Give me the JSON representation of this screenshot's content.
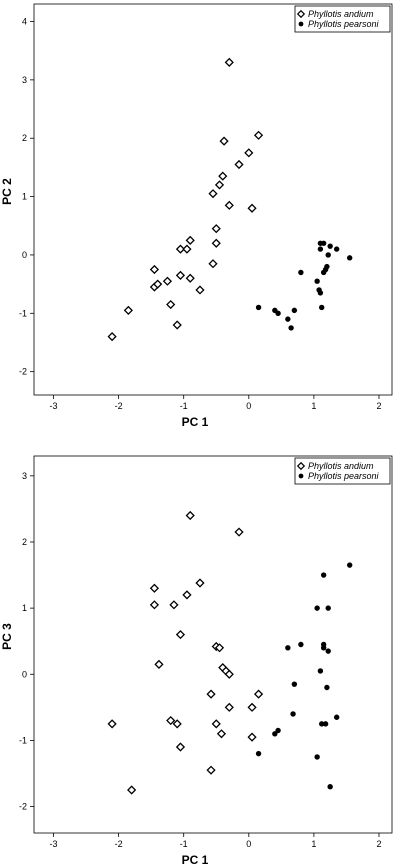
{
  "chart_data": [
    {
      "type": "scatter",
      "xlabel": "PC 1",
      "ylabel": "PC 2",
      "xlim": [
        -3.3,
        2.2
      ],
      "ylim": [
        -2.4,
        4.3
      ],
      "xticks": [
        "-3",
        "-2",
        "-1",
        "0",
        "1",
        "2"
      ],
      "yticks": [
        "-2",
        "-1",
        "0",
        "1",
        "2",
        "3",
        "4"
      ],
      "legend_position": "top-right",
      "series": [
        {
          "name": "Phyllotis andium",
          "marker": "open-diamond",
          "points": [
            [
              -2.1,
              -1.4
            ],
            [
              -1.85,
              -0.95
            ],
            [
              -1.45,
              -0.25
            ],
            [
              -1.45,
              -0.55
            ],
            [
              -1.4,
              -0.5
            ],
            [
              -1.25,
              -0.45
            ],
            [
              -1.2,
              -0.85
            ],
            [
              -1.1,
              -1.2
            ],
            [
              -1.05,
              -0.35
            ],
            [
              -1.05,
              0.1
            ],
            [
              -0.95,
              0.1
            ],
            [
              -0.9,
              0.25
            ],
            [
              -0.9,
              -0.4
            ],
            [
              -0.75,
              -0.6
            ],
            [
              -0.55,
              -0.15
            ],
            [
              -0.55,
              1.05
            ],
            [
              -0.5,
              0.2
            ],
            [
              -0.5,
              0.45
            ],
            [
              -0.45,
              1.2
            ],
            [
              -0.4,
              1.35
            ],
            [
              -0.38,
              1.95
            ],
            [
              -0.3,
              0.85
            ],
            [
              -0.3,
              3.3
            ],
            [
              -0.15,
              1.55
            ],
            [
              0.0,
              1.75
            ],
            [
              0.05,
              0.8
            ],
            [
              0.15,
              2.05
            ]
          ]
        },
        {
          "name": "Phyllotis pearsoni",
          "marker": "filled-circle",
          "points": [
            [
              0.15,
              -0.9
            ],
            [
              0.4,
              -0.95
            ],
            [
              0.45,
              -1.0
            ],
            [
              0.6,
              -1.1
            ],
            [
              0.65,
              -1.25
            ],
            [
              0.7,
              -0.95
            ],
            [
              0.8,
              -0.3
            ],
            [
              1.05,
              -0.45
            ],
            [
              1.08,
              -0.6
            ],
            [
              1.1,
              -0.65
            ],
            [
              1.1,
              0.1
            ],
            [
              1.1,
              0.2
            ],
            [
              1.12,
              -0.9
            ],
            [
              1.15,
              0.2
            ],
            [
              1.15,
              -0.3
            ],
            [
              1.18,
              -0.25
            ],
            [
              1.2,
              -0.2
            ],
            [
              1.22,
              0.0
            ],
            [
              1.25,
              0.15
            ],
            [
              1.35,
              0.1
            ],
            [
              1.55,
              -0.05
            ]
          ]
        }
      ]
    },
    {
      "type": "scatter",
      "xlabel": "PC 1",
      "ylabel": "PC 3",
      "xlim": [
        -3.3,
        2.2
      ],
      "ylim": [
        -2.4,
        3.3
      ],
      "xticks": [
        "-3",
        "-2",
        "-1",
        "0",
        "1",
        "2"
      ],
      "yticks": [
        "-2",
        "-1",
        "0",
        "1",
        "2",
        "3"
      ],
      "legend_position": "top-right",
      "series": [
        {
          "name": "Phyllotis andium",
          "marker": "open-diamond",
          "points": [
            [
              -2.1,
              -0.75
            ],
            [
              -1.8,
              -1.75
            ],
            [
              -1.45,
              1.3
            ],
            [
              -1.45,
              1.05
            ],
            [
              -1.38,
              0.15
            ],
            [
              -1.2,
              -0.7
            ],
            [
              -1.15,
              1.05
            ],
            [
              -1.1,
              -0.75
            ],
            [
              -1.05,
              -1.1
            ],
            [
              -1.05,
              0.6
            ],
            [
              -0.95,
              1.2
            ],
            [
              -0.9,
              2.4
            ],
            [
              -0.75,
              1.38
            ],
            [
              -0.58,
              -1.45
            ],
            [
              -0.58,
              -0.3
            ],
            [
              -0.5,
              -0.75
            ],
            [
              -0.5,
              0.42
            ],
            [
              -0.45,
              0.4
            ],
            [
              -0.42,
              -0.9
            ],
            [
              -0.4,
              0.1
            ],
            [
              -0.35,
              0.05
            ],
            [
              -0.3,
              0.0
            ],
            [
              -0.3,
              -0.5
            ],
            [
              -0.15,
              2.15
            ],
            [
              0.05,
              -0.95
            ],
            [
              0.05,
              -0.5
            ],
            [
              0.15,
              -0.3
            ]
          ]
        },
        {
          "name": "Phyllotis pearsoni",
          "marker": "filled-circle",
          "points": [
            [
              0.15,
              -1.2
            ],
            [
              0.4,
              -0.9
            ],
            [
              0.45,
              -0.85
            ],
            [
              0.6,
              0.4
            ],
            [
              0.68,
              -0.6
            ],
            [
              0.7,
              -0.15
            ],
            [
              0.8,
              0.45
            ],
            [
              1.05,
              -1.25
            ],
            [
              1.05,
              1.0
            ],
            [
              1.1,
              0.05
            ],
            [
              1.12,
              -0.75
            ],
            [
              1.15,
              0.4
            ],
            [
              1.15,
              0.45
            ],
            [
              1.15,
              1.5
            ],
            [
              1.18,
              -0.75
            ],
            [
              1.2,
              -0.2
            ],
            [
              1.22,
              0.35
            ],
            [
              1.22,
              1.0
            ],
            [
              1.25,
              -1.7
            ],
            [
              1.35,
              -0.65
            ],
            [
              1.55,
              1.65
            ]
          ]
        }
      ]
    }
  ]
}
